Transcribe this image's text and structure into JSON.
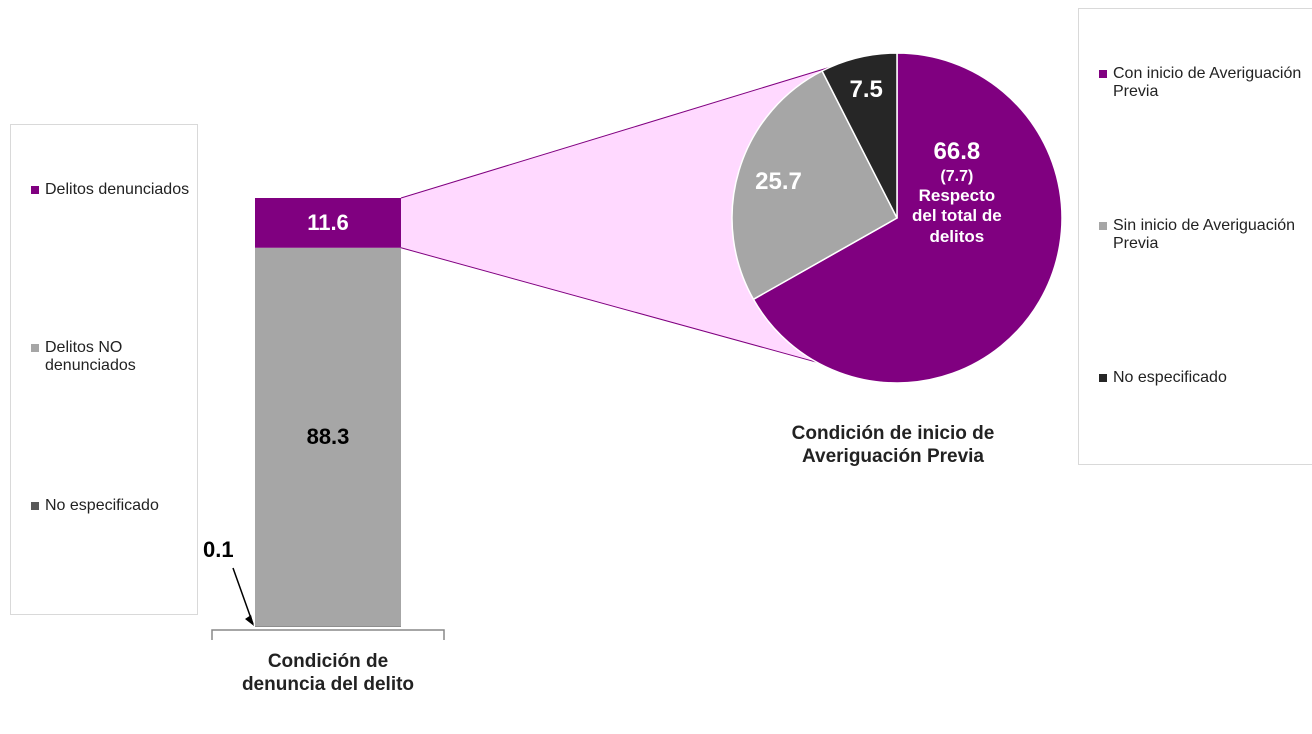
{
  "chart_data": [
    {
      "type": "bar",
      "stacked": true,
      "categories": [
        "Condición de denuncia del delito"
      ],
      "series": [
        {
          "name": "Delitos denunciados",
          "color": "#800080",
          "values": [
            11.6
          ]
        },
        {
          "name": "Delitos NO denunciados",
          "color": "#a6a6a6",
          "values": [
            88.3
          ]
        },
        {
          "name": "No especificado",
          "color": "#595959",
          "values": [
            0.1
          ]
        }
      ],
      "legend": "left"
    },
    {
      "type": "pie",
      "title": "Condición de inicio de Averiguación Previa",
      "categories": [
        "Con inicio de Averiguación Previa",
        "Sin inicio de Averiguación Previa",
        "No especificado"
      ],
      "values": [
        66.8,
        25.7,
        7.5
      ],
      "colors": [
        "#800080",
        "#a6a6a6",
        "#262626"
      ],
      "annotations": [
        "(7.7)",
        "Respecto del total de delitos"
      ],
      "legend": "right"
    }
  ]
}
